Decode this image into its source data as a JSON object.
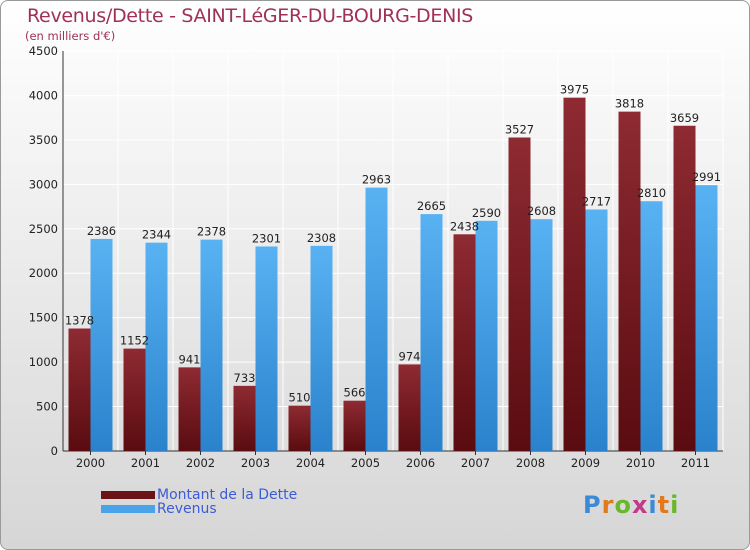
{
  "title": "Revenus/Dette - SAINT-LéGER-DU-BOURG-DENIS",
  "subtitle": "(en milliers d'€)",
  "chart_data": {
    "type": "bar",
    "categories": [
      "2000",
      "2001",
      "2002",
      "2003",
      "2004",
      "2005",
      "2006",
      "2007",
      "2008",
      "2009",
      "2010",
      "2011"
    ],
    "series": [
      {
        "name": "Montant de la Dette",
        "color": "#7a1f24",
        "values": [
          1378,
          1152,
          941,
          733,
          510,
          566,
          974,
          2438,
          3527,
          3975,
          3818,
          3659
        ]
      },
      {
        "name": "Revenus",
        "color": "#4aa3e8",
        "values": [
          2386,
          2344,
          2378,
          2301,
          2308,
          2963,
          2665,
          2590,
          2608,
          2717,
          2810,
          2991
        ]
      }
    ],
    "ylim": [
      0,
      4500
    ],
    "yticks": [
      0,
      500,
      1000,
      1500,
      2000,
      2500,
      3000,
      3500,
      4000,
      4500
    ],
    "grid": true,
    "legend_position": "bottom-left"
  },
  "logo": {
    "text": "Proxiti",
    "letter_colors": [
      "#3a8ad8",
      "#e07a1a",
      "#6ab82a",
      "#c23a8a",
      "#3a8ad8",
      "#e07a1a",
      "#6ab82a"
    ]
  }
}
